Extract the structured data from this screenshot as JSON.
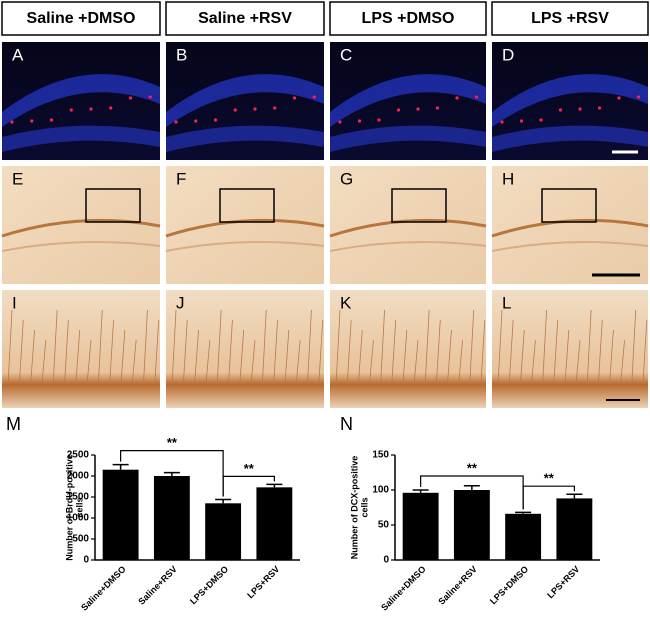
{
  "headers": [
    "Saline +DMSO",
    "Saline +RSV",
    "LPS +DMSO",
    "LPS +RSV"
  ],
  "panels": [
    "A",
    "B",
    "C",
    "D",
    "E",
    "F",
    "G",
    "H",
    "I",
    "J",
    "K",
    "L"
  ],
  "chart_data": [
    {
      "type": "bar",
      "label": "M",
      "ylabel": [
        "Number of BrdU-positive",
        "cells"
      ],
      "categories": [
        "Saline+DMSO",
        "Saline+RSV",
        "LPS+DMSO",
        "LPS+RSV"
      ],
      "values": [
        2150,
        2000,
        1350,
        1730
      ],
      "errors": [
        120,
        80,
        90,
        70
      ],
      "color": "#000000",
      "ylim": [
        0,
        2500
      ],
      "yticks": [
        0,
        500,
        1000,
        1500,
        2000,
        2500
      ],
      "annotations": [
        "**",
        "**"
      ]
    },
    {
      "type": "bar",
      "label": "N",
      "ylabel": [
        "Number of DCX-positive",
        "cells"
      ],
      "categories": [
        "Saline+DMSO",
        "Saline+RSV",
        "LPS+DMSO",
        "LPS+RSV"
      ],
      "values": [
        96,
        100,
        66,
        88
      ],
      "errors": [
        4,
        6,
        2,
        6
      ],
      "color": "#000000",
      "ylim": [
        0,
        150
      ],
      "yticks": [
        0,
        50,
        100,
        150
      ],
      "annotations": [
        "**",
        "**"
      ]
    }
  ]
}
